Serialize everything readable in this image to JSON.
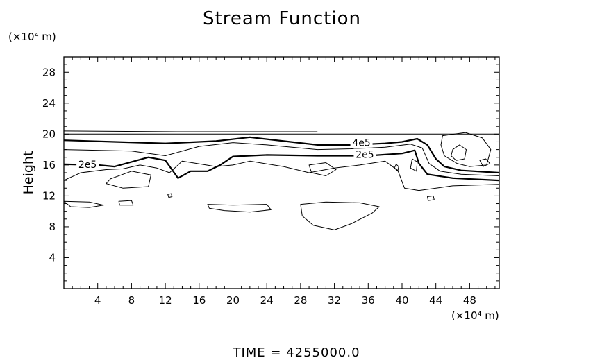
{
  "chart_data": {
    "type": "contour",
    "title": "Stream Function",
    "xlabel": "",
    "ylabel": "Height",
    "x_unit": "(×10⁴ m)",
    "y_unit": "(×10⁴ m)",
    "xlim": [
      0,
      51.5
    ],
    "ylim": [
      0,
      30
    ],
    "x_ticks": [
      4,
      8,
      12,
      16,
      20,
      24,
      28,
      32,
      36,
      40,
      44,
      48
    ],
    "y_ticks": [
      4,
      8,
      12,
      16,
      20,
      24,
      28
    ],
    "grid": false,
    "contour_labels": [
      {
        "text": "4e5",
        "x": 35.2,
        "y": 18.8
      },
      {
        "text": "2e5",
        "x": 35.6,
        "y": 17.3
      },
      {
        "text": "2e5",
        "x": 2.8,
        "y": 16.0
      }
    ],
    "contours": [
      {
        "name": "c-top-flat",
        "level": "",
        "bold": false,
        "points": [
          [
            0,
            20
          ],
          [
            51.5,
            20
          ]
        ]
      },
      {
        "name": "c-top-thin",
        "level": "",
        "bold": false,
        "points": [
          [
            0,
            20.4
          ],
          [
            14,
            20.3
          ],
          [
            30,
            20.3
          ]
        ]
      },
      {
        "name": "c-4e5",
        "level": "4e5",
        "bold": true,
        "points": [
          [
            0,
            19.2
          ],
          [
            6,
            19.0
          ],
          [
            12,
            18.8
          ],
          [
            18,
            19.1
          ],
          [
            22,
            19.6
          ],
          [
            26,
            19.1
          ],
          [
            30,
            18.6
          ],
          [
            34,
            18.6
          ],
          [
            38,
            18.8
          ],
          [
            40,
            19.0
          ],
          [
            41.8,
            19.4
          ],
          [
            43,
            18.6
          ],
          [
            44,
            16.8
          ],
          [
            45,
            15.8
          ],
          [
            47,
            15.3
          ],
          [
            51.5,
            15.0
          ]
        ]
      },
      {
        "name": "c-3e5",
        "level": "",
        "bold": false,
        "points": [
          [
            0,
            18.0
          ],
          [
            8,
            17.8
          ],
          [
            12,
            17.2
          ],
          [
            16,
            18.4
          ],
          [
            20,
            18.9
          ],
          [
            24,
            18.6
          ],
          [
            30,
            18.0
          ],
          [
            34,
            18.1
          ],
          [
            38,
            18.3
          ],
          [
            41,
            18.7
          ],
          [
            42.4,
            18.2
          ],
          [
            43.2,
            16.2
          ],
          [
            44.5,
            15.2
          ],
          [
            47,
            14.8
          ],
          [
            51.5,
            14.6
          ]
        ]
      },
      {
        "name": "c-2e5",
        "level": "2e5",
        "bold": true,
        "points": [
          [
            0,
            16.1
          ],
          [
            4,
            16.0
          ],
          [
            6,
            15.8
          ],
          [
            8,
            16.4
          ],
          [
            10,
            17.0
          ],
          [
            12,
            16.6
          ],
          [
            13.5,
            14.3
          ],
          [
            15,
            15.2
          ],
          [
            17,
            15.2
          ],
          [
            18.5,
            16.0
          ],
          [
            20,
            17.1
          ],
          [
            24,
            17.3
          ],
          [
            30,
            17.2
          ],
          [
            36,
            17.2
          ],
          [
            40,
            17.5
          ],
          [
            41.5,
            17.9
          ],
          [
            42,
            16.2
          ],
          [
            43,
            14.8
          ],
          [
            46,
            14.3
          ],
          [
            51.5,
            14.0
          ]
        ]
      },
      {
        "name": "c-1e5",
        "level": "",
        "bold": false,
        "points": [
          [
            0,
            14.0
          ],
          [
            2,
            15.0
          ],
          [
            5,
            15.4
          ],
          [
            7,
            15.5
          ],
          [
            9,
            16.0
          ],
          [
            11,
            15.6
          ],
          [
            12.5,
            15.0
          ],
          [
            14,
            16.5
          ],
          [
            18,
            15.8
          ],
          [
            20,
            16.0
          ],
          [
            22,
            16.5
          ],
          [
            26,
            15.8
          ],
          [
            29,
            15.0
          ],
          [
            32,
            15.6
          ],
          [
            35,
            16.0
          ],
          [
            38,
            16.5
          ],
          [
            39.5,
            15.3
          ],
          [
            40.3,
            13.0
          ],
          [
            42,
            12.7
          ],
          [
            46,
            13.3
          ],
          [
            51.5,
            13.5
          ]
        ]
      },
      {
        "name": "c-blob-right",
        "level": "",
        "bold": false,
        "closed": true,
        "points": [
          [
            44.8,
            19.8
          ],
          [
            47.5,
            20.2
          ],
          [
            49.5,
            19.5
          ],
          [
            50.5,
            18.0
          ],
          [
            50,
            16.0
          ],
          [
            48,
            15.8
          ],
          [
            46.5,
            16.2
          ],
          [
            45,
            17.2
          ],
          [
            44.6,
            18.6
          ]
        ]
      },
      {
        "name": "c-blob-right-inner",
        "level": "",
        "bold": false,
        "closed": true,
        "points": [
          [
            46,
            18.0
          ],
          [
            46.8,
            18.6
          ],
          [
            47.6,
            18.0
          ],
          [
            47.4,
            16.8
          ],
          [
            46.4,
            16.6
          ],
          [
            45.8,
            17.2
          ]
        ]
      },
      {
        "name": "c-blob-small-right",
        "level": "",
        "bold": false,
        "closed": true,
        "points": [
          [
            49.2,
            16.6
          ],
          [
            49.9,
            16.8
          ],
          [
            50.4,
            16.2
          ],
          [
            49.6,
            15.8
          ]
        ]
      },
      {
        "name": "c-blob-40",
        "level": "",
        "bold": false,
        "closed": true,
        "points": [
          [
            41.2,
            16.8
          ],
          [
            41.8,
            16.4
          ],
          [
            41.7,
            15.2
          ],
          [
            41.0,
            15.6
          ]
        ]
      },
      {
        "name": "c-blob-39",
        "level": "",
        "bold": false,
        "closed": true,
        "points": [
          [
            39.3,
            16.1
          ],
          [
            39.6,
            15.8
          ],
          [
            39.5,
            15.2
          ],
          [
            39.1,
            15.6
          ]
        ]
      },
      {
        "name": "c-mid-left",
        "level": "",
        "bold": false,
        "closed": true,
        "points": [
          [
            5.5,
            14.2
          ],
          [
            8,
            15.2
          ],
          [
            10.3,
            14.7
          ],
          [
            10,
            13.2
          ],
          [
            7,
            13.0
          ],
          [
            5,
            13.6
          ]
        ]
      },
      {
        "name": "c-mid-center",
        "level": "",
        "bold": false,
        "closed": true,
        "points": [
          [
            29,
            16.0
          ],
          [
            31,
            16.3
          ],
          [
            32.2,
            15.4
          ],
          [
            31,
            14.6
          ],
          [
            29.3,
            15.0
          ]
        ]
      },
      {
        "name": "c-small-12",
        "level": "",
        "bold": false,
        "closed": true,
        "points": [
          [
            12.3,
            12.2
          ],
          [
            12.7,
            12.3
          ],
          [
            12.8,
            11.9
          ],
          [
            12.4,
            11.8
          ]
        ]
      },
      {
        "name": "c-small-43",
        "level": "",
        "bold": false,
        "closed": true,
        "points": [
          [
            43,
            11.9
          ],
          [
            43.7,
            12.0
          ],
          [
            43.8,
            11.5
          ],
          [
            43.1,
            11.4
          ]
        ]
      },
      {
        "name": "c-low-left",
        "level": "",
        "bold": false,
        "closed": true,
        "points": [
          [
            0,
            11.3
          ],
          [
            3,
            11.2
          ],
          [
            4.7,
            10.8
          ],
          [
            3,
            10.5
          ],
          [
            0.8,
            10.6
          ]
        ]
      },
      {
        "name": "c-low-left2",
        "level": "",
        "bold": false,
        "closed": true,
        "points": [
          [
            6.5,
            11.3
          ],
          [
            8,
            11.4
          ],
          [
            8.2,
            10.8
          ],
          [
            6.6,
            10.8
          ]
        ]
      },
      {
        "name": "c-low-mid",
        "level": "",
        "bold": false,
        "closed": true,
        "points": [
          [
            17,
            10.9
          ],
          [
            20,
            10.8
          ],
          [
            24,
            10.9
          ],
          [
            24.5,
            10.2
          ],
          [
            22,
            9.9
          ],
          [
            19,
            10.1
          ],
          [
            17.2,
            10.4
          ]
        ]
      },
      {
        "name": "c-big-low",
        "level": "",
        "bold": false,
        "closed": true,
        "points": [
          [
            28,
            10.9
          ],
          [
            31,
            11.2
          ],
          [
            35,
            11.1
          ],
          [
            37.3,
            10.6
          ],
          [
            36.5,
            9.8
          ],
          [
            34,
            8.4
          ],
          [
            32,
            7.6
          ],
          [
            29.5,
            8.2
          ],
          [
            28.2,
            9.4
          ]
        ]
      }
    ]
  },
  "footer": {
    "time_label": "TIME  =  4255000.0"
  }
}
